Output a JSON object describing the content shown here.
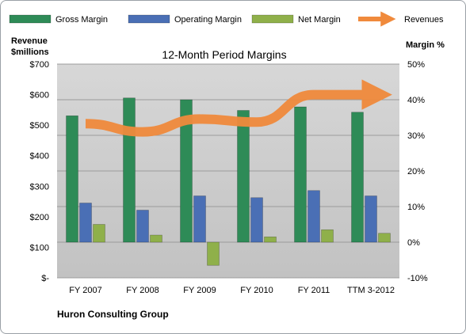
{
  "chart_data": {
    "type": "bar",
    "title": "12-Month Period Margins",
    "company": "Huron Consulting Group",
    "left_axis": {
      "label_line1": "Revenue",
      "label_line2": "$millions",
      "ylim": [
        0,
        700
      ],
      "ticks": [
        0,
        100,
        200,
        300,
        400,
        500,
        600,
        700
      ],
      "tick_labels": [
        "$-",
        "$100",
        "$200",
        "$300",
        "$400",
        "$500",
        "$600",
        "$700"
      ]
    },
    "right_axis": {
      "label": "Margin %",
      "ylim": [
        -10,
        50
      ],
      "ticks": [
        -10,
        0,
        10,
        20,
        30,
        40,
        50
      ],
      "tick_labels": [
        "-10%",
        "0%",
        "10%",
        "20%",
        "30%",
        "40%",
        "50%"
      ]
    },
    "categories": [
      "FY 2007",
      "FY 2008",
      "FY 2009",
      "FY 2010",
      "FY 2011",
      "TTM 3-2012"
    ],
    "series": [
      {
        "name": "Gross Margin",
        "axis": "right",
        "color": "#2e8b57",
        "values": [
          35.5,
          40.5,
          40.0,
          37.0,
          38.0,
          36.5
        ]
      },
      {
        "name": "Operating Margin",
        "axis": "right",
        "color": "#4a6fb5",
        "values": [
          11.0,
          9.0,
          13.0,
          12.5,
          14.5,
          13.0
        ]
      },
      {
        "name": "Net Margin",
        "axis": "right",
        "color": "#8fb04a",
        "values": [
          5.0,
          2.0,
          -6.5,
          1.5,
          3.5,
          2.5
        ]
      },
      {
        "name": "Revenues",
        "axis": "left",
        "color": "#f08a3c",
        "values": [
          505,
          478,
          520,
          510,
          600,
          600
        ]
      }
    ],
    "grid": true,
    "legend": "top"
  }
}
